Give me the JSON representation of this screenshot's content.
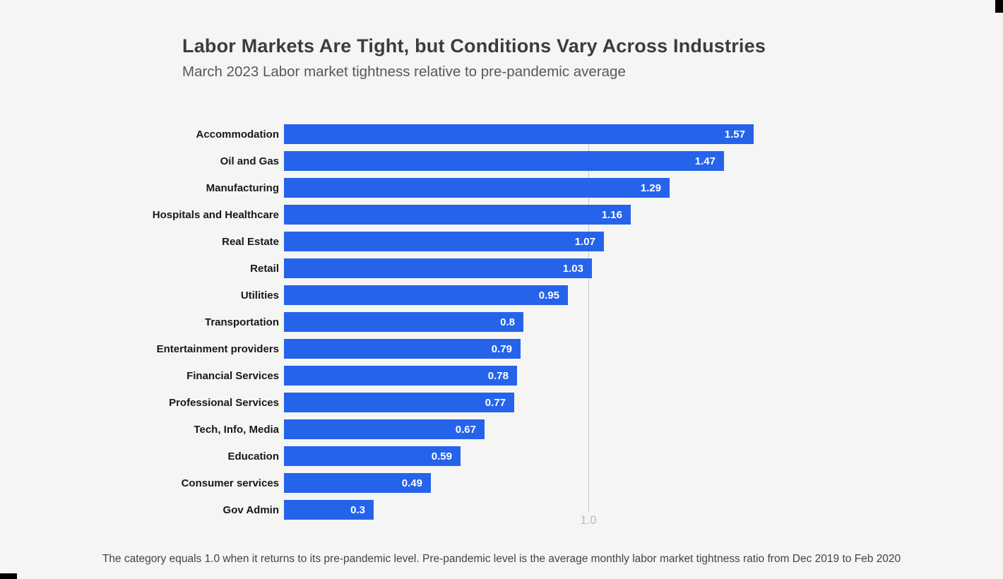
{
  "page": {
    "background_color": "#f5f5f3"
  },
  "header": {
    "title": "Labor Markets Are Tight, but Conditions Vary Across Industries",
    "subtitle": "March 2023 Labor market tightness relative to pre-pandemic average"
  },
  "chart_data": {
    "type": "bar",
    "orientation": "horizontal",
    "title": "Labor Markets Are Tight, but Conditions Vary Across Industries",
    "subtitle": "March 2023 Labor market tightness relative to pre-pandemic average",
    "categories": [
      "Accommodation",
      "Oil and Gas",
      "Manufacturing",
      "Hospitals and Healthcare",
      "Real Estate",
      "Retail",
      "Utilities",
      "Transportation",
      "Entertainment providers",
      "Financial Services",
      "Professional Services",
      "Tech, Info, Media",
      "Education",
      "Consumer services",
      "Gov Admin"
    ],
    "values": [
      1.57,
      1.47,
      1.29,
      1.16,
      1.07,
      1.03,
      0.95,
      0.8,
      0.79,
      0.78,
      0.77,
      0.67,
      0.59,
      0.49,
      0.3
    ],
    "values_display": [
      "1.57",
      "1.47",
      "1.29",
      "1.16",
      "1.07",
      "1.03",
      "0.95",
      "0.8",
      "0.79",
      "0.78",
      "0.77",
      "0.67",
      "0.59",
      "0.49",
      "0.3"
    ],
    "reference_line": {
      "value": 1.0,
      "label": "1.0"
    },
    "xlim": [
      0,
      1.6
    ],
    "grid": "single-reference-line",
    "legend": "none",
    "bar_color": "#2563eb",
    "value_label_color": "#ffffff",
    "reference_line_color": "#c9c9c9",
    "reference_label_color": "#b9b9b9"
  },
  "footer": {
    "note": "The category equals 1.0 when it returns to its pre-pandemic level. Pre-pandemic level is the average monthly labor market tightness ratio from Dec 2019 to Feb 2020"
  }
}
